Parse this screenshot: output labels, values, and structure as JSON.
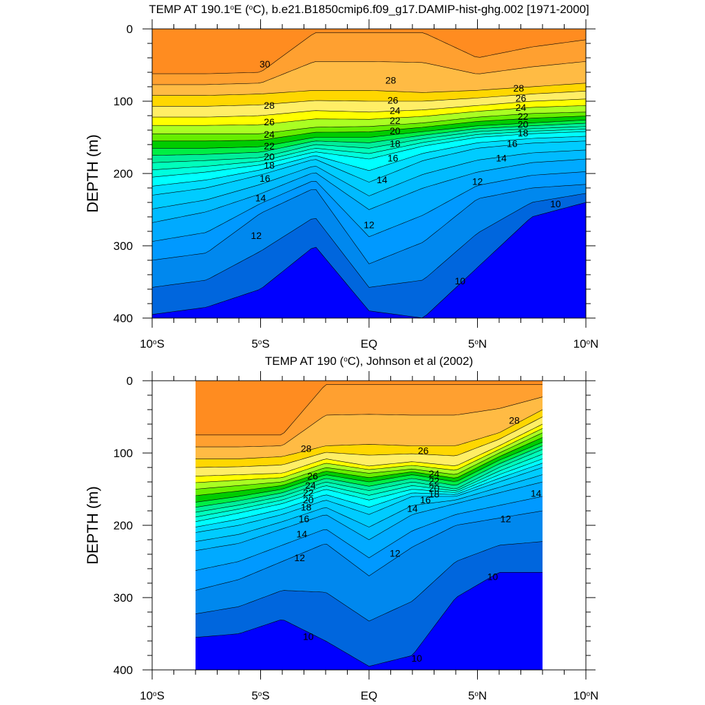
{
  "chart_data": [
    {
      "type": "heatmap",
      "title_parts": [
        "TEMP AT 190.1",
        "o",
        "E (",
        "o",
        "C), b.e21.B1850cmip6.f09_g17.DAMIP-hist-ghg.002 [1971-2000]"
      ],
      "ylabel": "DEPTH (m)",
      "xlabel": "",
      "x_ticks": [
        {
          "value": -10,
          "deg": "10",
          "suf": "S"
        },
        {
          "value": -5,
          "deg": "5",
          "suf": "S"
        },
        {
          "value": 0,
          "deg": "",
          "suf": "EQ"
        },
        {
          "value": 5,
          "deg": "5",
          "suf": "N"
        },
        {
          "value": 10,
          "deg": "10",
          "suf": "N"
        }
      ],
      "y_ticks": [
        "0",
        "100",
        "200",
        "300",
        "400"
      ],
      "xlim": [
        -10,
        10
      ],
      "ylim": [
        0,
        400
      ],
      "y_inverted": true,
      "data_xrange": [
        -10,
        10
      ],
      "x_samples": [
        -10,
        -7.5,
        -5,
        -2.5,
        0,
        2.5,
        5,
        7.5,
        10
      ],
      "contour_interval": 1,
      "isotherm_depths": {
        "10": [
          395,
          385,
          360,
          300,
          390,
          400,
          330,
          260,
          240
        ],
        "12": [
          320,
          310,
          255,
          220,
          325,
          295,
          235,
          220,
          215
        ],
        "14": [
          268,
          253,
          228,
          198,
          250,
          220,
          198,
          185,
          180
        ],
        "16": [
          230,
          220,
          202,
          180,
          212,
          182,
          165,
          158,
          155
        ],
        "18": [
          205,
          198,
          188,
          170,
          180,
          162,
          150,
          145,
          142
        ],
        "20": [
          185,
          182,
          178,
          160,
          165,
          152,
          142,
          138,
          135
        ],
        "22": [
          165,
          165,
          163,
          150,
          150,
          142,
          134,
          130,
          126
        ],
        "24": [
          145,
          145,
          145,
          136,
          135,
          130,
          122,
          117,
          115
        ],
        "26": [
          122,
          122,
          120,
          113,
          115,
          112,
          106,
          100,
          97
        ],
        "28": [
          92,
          92,
          90,
          85,
          85,
          88,
          85,
          80,
          75
        ],
        "30": [
          62,
          62,
          60,
          5,
          5,
          5,
          40,
          25,
          15
        ]
      },
      "contour_labels": [
        {
          "text": "30",
          "x": -4.8,
          "y": 50
        },
        {
          "text": "28",
          "x": 1.0,
          "y": 72
        },
        {
          "text": "28",
          "x": 6.9,
          "y": 83
        },
        {
          "text": "28",
          "x": -4.6,
          "y": 107
        },
        {
          "text": "26",
          "x": 1.1,
          "y": 100
        },
        {
          "text": "26",
          "x": 7.0,
          "y": 97
        },
        {
          "text": "24",
          "x": 7.0,
          "y": 110
        },
        {
          "text": "22",
          "x": 7.1,
          "y": 122
        },
        {
          "text": "20",
          "x": 7.1,
          "y": 133
        },
        {
          "text": "18",
          "x": 7.1,
          "y": 145
        },
        {
          "text": "16",
          "x": 6.6,
          "y": 160
        },
        {
          "text": "14",
          "x": 6.1,
          "y": 180
        },
        {
          "text": "12",
          "x": 5.0,
          "y": 212
        },
        {
          "text": "10",
          "x": 8.6,
          "y": 243
        },
        {
          "text": "24",
          "x": 1.2,
          "y": 114
        },
        {
          "text": "22",
          "x": 1.2,
          "y": 128
        },
        {
          "text": "20",
          "x": 1.2,
          "y": 142
        },
        {
          "text": "18",
          "x": 1.2,
          "y": 160
        },
        {
          "text": "16",
          "x": 1.1,
          "y": 180
        },
        {
          "text": "14",
          "x": 0.6,
          "y": 210
        },
        {
          "text": "12",
          "x": 0,
          "y": 272
        },
        {
          "text": "10",
          "x": 4.2,
          "y": 350
        },
        {
          "text": "26",
          "x": -4.6,
          "y": 130
        },
        {
          "text": "24",
          "x": -4.6,
          "y": 147
        },
        {
          "text": "22",
          "x": -4.6,
          "y": 163
        },
        {
          "text": "20",
          "x": -4.6,
          "y": 178
        },
        {
          "text": "18",
          "x": -4.6,
          "y": 190
        },
        {
          "text": "16",
          "x": -4.8,
          "y": 208
        },
        {
          "text": "14",
          "x": -5.0,
          "y": 235
        },
        {
          "text": "12",
          "x": -5.2,
          "y": 287
        }
      ]
    },
    {
      "type": "heatmap",
      "title_parts": [
        "TEMP AT 190 (",
        "o",
        "C), Johnson et al (2002)"
      ],
      "ylabel": "DEPTH (m)",
      "xlabel": "",
      "x_ticks": [
        {
          "value": -10,
          "deg": "10",
          "suf": "S"
        },
        {
          "value": -5,
          "deg": "5",
          "suf": "S"
        },
        {
          "value": 0,
          "deg": "",
          "suf": "EQ"
        },
        {
          "value": 5,
          "deg": "5",
          "suf": "N"
        },
        {
          "value": 10,
          "deg": "10",
          "suf": "N"
        }
      ],
      "y_ticks": [
        "0",
        "100",
        "200",
        "300",
        "400"
      ],
      "xlim": [
        -10,
        10
      ],
      "ylim": [
        0,
        400
      ],
      "y_inverted": true,
      "data_xrange": [
        -8,
        8
      ],
      "x_samples": [
        -8,
        -6,
        -4,
        -2,
        0,
        2,
        4,
        6,
        8
      ],
      "contour_interval": 1,
      "isotherm_depths": {
        "10": [
          355,
          350,
          330,
          360,
          395,
          380,
          300,
          265,
          265
        ],
        "12": [
          290,
          275,
          250,
          225,
          270,
          230,
          200,
          190,
          180
        ],
        "14": [
          235,
          225,
          205,
          185,
          220,
          185,
          170,
          155,
          140
        ],
        "16": [
          210,
          200,
          185,
          165,
          185,
          160,
          160,
          140,
          120
        ],
        "18": [
          195,
          183,
          170,
          150,
          165,
          150,
          155,
          130,
          108
        ],
        "20": [
          182,
          172,
          160,
          140,
          152,
          140,
          150,
          120,
          95
        ],
        "22": [
          168,
          160,
          150,
          130,
          140,
          130,
          140,
          110,
          85
        ],
        "24": [
          150,
          145,
          140,
          120,
          128,
          122,
          130,
          100,
          72
        ],
        "26": [
          132,
          130,
          128,
          108,
          118,
          112,
          118,
          90,
          60
        ],
        "28": [
          108,
          108,
          105,
          90,
          88,
          90,
          90,
          72,
          40
        ],
        "30": [
          75,
          75,
          75,
          5,
          5,
          5,
          5,
          5,
          5
        ]
      },
      "contour_labels": [
        {
          "text": "28",
          "x": -2.9,
          "y": 95
        },
        {
          "text": "28",
          "x": 6.7,
          "y": 56
        },
        {
          "text": "26",
          "x": 2.5,
          "y": 98
        },
        {
          "text": "26",
          "x": -2.6,
          "y": 133
        },
        {
          "text": "24",
          "x": -2.7,
          "y": 146
        },
        {
          "text": "22",
          "x": -2.8,
          "y": 156
        },
        {
          "text": "20",
          "x": -2.8,
          "y": 166
        },
        {
          "text": "18",
          "x": -2.9,
          "y": 176
        },
        {
          "text": "16",
          "x": -3.0,
          "y": 192
        },
        {
          "text": "14",
          "x": -3.1,
          "y": 213
        },
        {
          "text": "12",
          "x": -3.2,
          "y": 246
        },
        {
          "text": "24",
          "x": 3.0,
          "y": 130
        },
        {
          "text": "22",
          "x": 3.0,
          "y": 140
        },
        {
          "text": "20",
          "x": 3.0,
          "y": 150
        },
        {
          "text": "18",
          "x": 3.0,
          "y": 158
        },
        {
          "text": "16",
          "x": 2.6,
          "y": 166
        },
        {
          "text": "14",
          "x": 2.0,
          "y": 178
        },
        {
          "text": "12",
          "x": 1.2,
          "y": 240
        },
        {
          "text": "14",
          "x": 7.7,
          "y": 157
        },
        {
          "text": "12",
          "x": 6.3,
          "y": 192
        },
        {
          "text": "10",
          "x": 5.7,
          "y": 272
        },
        {
          "text": "10",
          "x": -2.8,
          "y": 355
        },
        {
          "text": "10",
          "x": 2.2,
          "y": 385
        }
      ]
    }
  ],
  "colors": {
    "scale": [
      "#0000ff",
      "#0033ee",
      "#0066dd",
      "#0088ee",
      "#0099ff",
      "#00aaff",
      "#00bbff",
      "#00ccff",
      "#00ddff",
      "#00ffff",
      "#00ffdd",
      "#00ffbb",
      "#00ee99",
      "#00ee44",
      "#00cc00",
      "#66ee00",
      "#aaff22",
      "#ffff00",
      "#ffee66",
      "#ffd700",
      "#ffbb44",
      "#ffa030",
      "#ff8c20",
      "#ff7000",
      "#ff4800",
      "#ff2000",
      "#ff0000",
      "#ee0000",
      "#cc0000"
    ],
    "scale_min_temp": 9,
    "contour_line": "#000000",
    "axis": "#000000",
    "background": "#ffffff"
  }
}
